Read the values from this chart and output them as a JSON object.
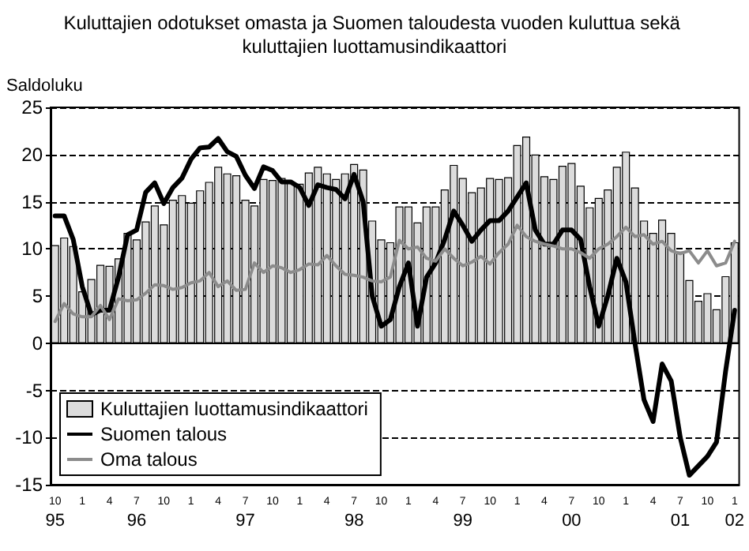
{
  "chart_data": {
    "type": "bar",
    "title": "Kuluttajien odotukset omasta ja Suomen taloudesta vuoden kuluttua sekä kuluttajien luottamusindikaattori",
    "ylabel": "Saldoluku",
    "categories": [
      "10\n95",
      null,
      null,
      "1",
      null,
      null,
      "4",
      null,
      null,
      "7\n96",
      null,
      null,
      "10",
      null,
      null,
      "1",
      null,
      null,
      "4",
      null,
      null,
      "7\n97",
      null,
      null,
      "10",
      null,
      null,
      "1",
      null,
      null,
      "4",
      null,
      null,
      "7\n98",
      null,
      null,
      "10",
      null,
      null,
      "1",
      null,
      null,
      "4",
      null,
      null,
      "7\n99",
      null,
      null,
      "10",
      null,
      null,
      "1",
      null,
      null,
      "4",
      null,
      null,
      "7\n00",
      null,
      null,
      "10",
      null,
      null,
      "1",
      null,
      null,
      "4",
      null,
      null,
      "7\n01",
      null,
      null,
      "10",
      null,
      null,
      "1\n02"
    ],
    "series": [
      {
        "name": "Kuluttajien luottamusindikaattori",
        "color": "#dcdcdc",
        "values": [
          10.4,
          11.2,
          10.3,
          5.5,
          6.8,
          8.3,
          8.2,
          9.0,
          11.7,
          11.0,
          12.9,
          14.6,
          12.6,
          15.2,
          15.7,
          14.9,
          16.2,
          17.1,
          18.7,
          18.0,
          17.8,
          15.2,
          14.6,
          17.4,
          17.3,
          17.5,
          17.0,
          16.9,
          18.1,
          18.7,
          18.0,
          17.4,
          18.0,
          19.0,
          18.4,
          13.0,
          11.0,
          10.7,
          14.5,
          14.5,
          12.8,
          14.5,
          14.5,
          16.3,
          18.9,
          17.5,
          16.0,
          16.5,
          17.5,
          17.4,
          17.6,
          21.0,
          21.9,
          20.0,
          17.7,
          17.4,
          18.8,
          19.1,
          16.7,
          14.4,
          15.4,
          16.3,
          18.7,
          20.3,
          16.5,
          13.0,
          11.7,
          13.1,
          11.7,
          9.7,
          6.7,
          4.5,
          5.3,
          3.6,
          7.1,
          10.7
        ]
      },
      {
        "name": "Suomen talous",
        "type": "line",
        "color": "#000000",
        "values": [
          13.5,
          13.5,
          11,
          6,
          3,
          3.5,
          3.5,
          7,
          11.5,
          12,
          16,
          17,
          14.8,
          16.5,
          17.5,
          19.5,
          20.7,
          20.8,
          21.7,
          20.3,
          19.8,
          17.8,
          16.4,
          18.7,
          18.3,
          17.1,
          17.1,
          16.5,
          14.6,
          16.8,
          16.5,
          16.3,
          15.3,
          17.9,
          15,
          5,
          1.8,
          2.5,
          6,
          8.5,
          1.8,
          7,
          8.5,
          11,
          14,
          12.5,
          10.8,
          12,
          13,
          13,
          14,
          15.5,
          17,
          12,
          10.5,
          10.5,
          12,
          12,
          11,
          6,
          1.8,
          5,
          9,
          6.5,
          0,
          -6,
          -8.3,
          -2.2,
          -4,
          -10,
          -14,
          -13,
          -12,
          -10.5,
          -3,
          3.5
        ]
      },
      {
        "name": "Oma talous",
        "type": "line",
        "color": "#8c8c8c",
        "values": [
          2.3,
          4.2,
          3.1,
          2.8,
          2.8,
          4.0,
          2.5,
          4.7,
          4.5,
          4.6,
          5.3,
          6.2,
          6.1,
          5.7,
          5.9,
          6.4,
          6.6,
          7.5,
          6.0,
          6.6,
          5.6,
          5.7,
          8.5,
          7.5,
          8.2,
          8.0,
          7.5,
          7.8,
          8.4,
          8.3,
          9.3,
          8.2,
          7.3,
          7.2,
          7.0,
          6.6,
          6.5,
          7.0,
          10.9,
          10.0,
          10.2,
          9.0,
          8.7,
          10.0,
          9.0,
          8.2,
          8.6,
          9.2,
          8.4,
          9.6,
          10.5,
          12.5,
          11.3,
          10.8,
          10.5,
          10.3,
          10.0,
          10.0,
          9.6,
          9.0,
          10.0,
          10.5,
          11.3,
          12.3,
          11.3,
          11.5,
          10.5,
          10.8,
          9.8,
          9.5,
          9.8,
          8.5,
          9.8,
          8.2,
          8.5,
          10.8
        ]
      }
    ],
    "ylim": [
      -15,
      25
    ],
    "yticks": [
      -15,
      -10,
      -5,
      0,
      5,
      10,
      15,
      20,
      25
    ],
    "grid": "y",
    "legend": "bottom left",
    "marker": "none",
    "line_style": "solid"
  }
}
